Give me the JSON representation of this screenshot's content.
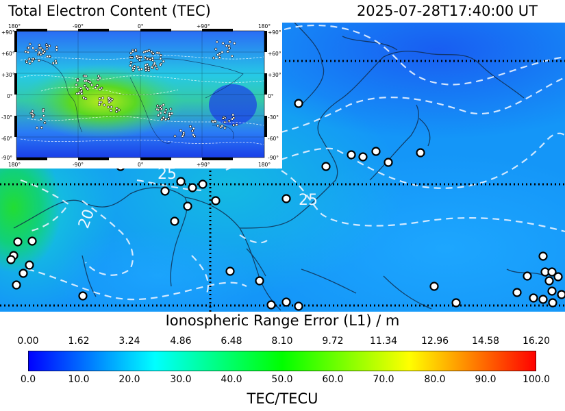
{
  "header": {
    "title": "Total Electron Content (TEC)",
    "timestamp": "2025-07-28T17:40:00 UT"
  },
  "map": {
    "contour_labels": [
      "25",
      "25",
      "20"
    ],
    "inset": {
      "top_ticks": [
        "180°",
        "-90°",
        "0°",
        "+90°",
        "180°"
      ],
      "bottom_ticks": [
        "180°",
        "-90°",
        "0°",
        "+90°",
        "180°"
      ],
      "left_ticks": [
        "+90°",
        "+60°",
        "+30°",
        "0°",
        "-30°",
        "-60°",
        "-90°"
      ],
      "right_ticks": [
        "+90°",
        "+60°",
        "+30°",
        "0°",
        "-30°",
        "-60°",
        "-90°"
      ]
    }
  },
  "colorbar": {
    "range_title": "Ionospheric Range Error (L1) / m",
    "range_ticks": [
      "0.00",
      "1.62",
      "3.24",
      "4.86",
      "6.48",
      "8.10",
      "9.72",
      "11.34",
      "12.96",
      "14.58",
      "16.20"
    ],
    "tec_ticks": [
      "0.0",
      "10.0",
      "20.0",
      "30.0",
      "40.0",
      "50.0",
      "60.0",
      "70.0",
      "80.0",
      "90.0",
      "100.0"
    ],
    "unit_label": "TEC/TECU",
    "colors": [
      "#0000ff",
      "#00ffff",
      "#00ff00",
      "#ffff00",
      "#ff0000"
    ]
  }
}
